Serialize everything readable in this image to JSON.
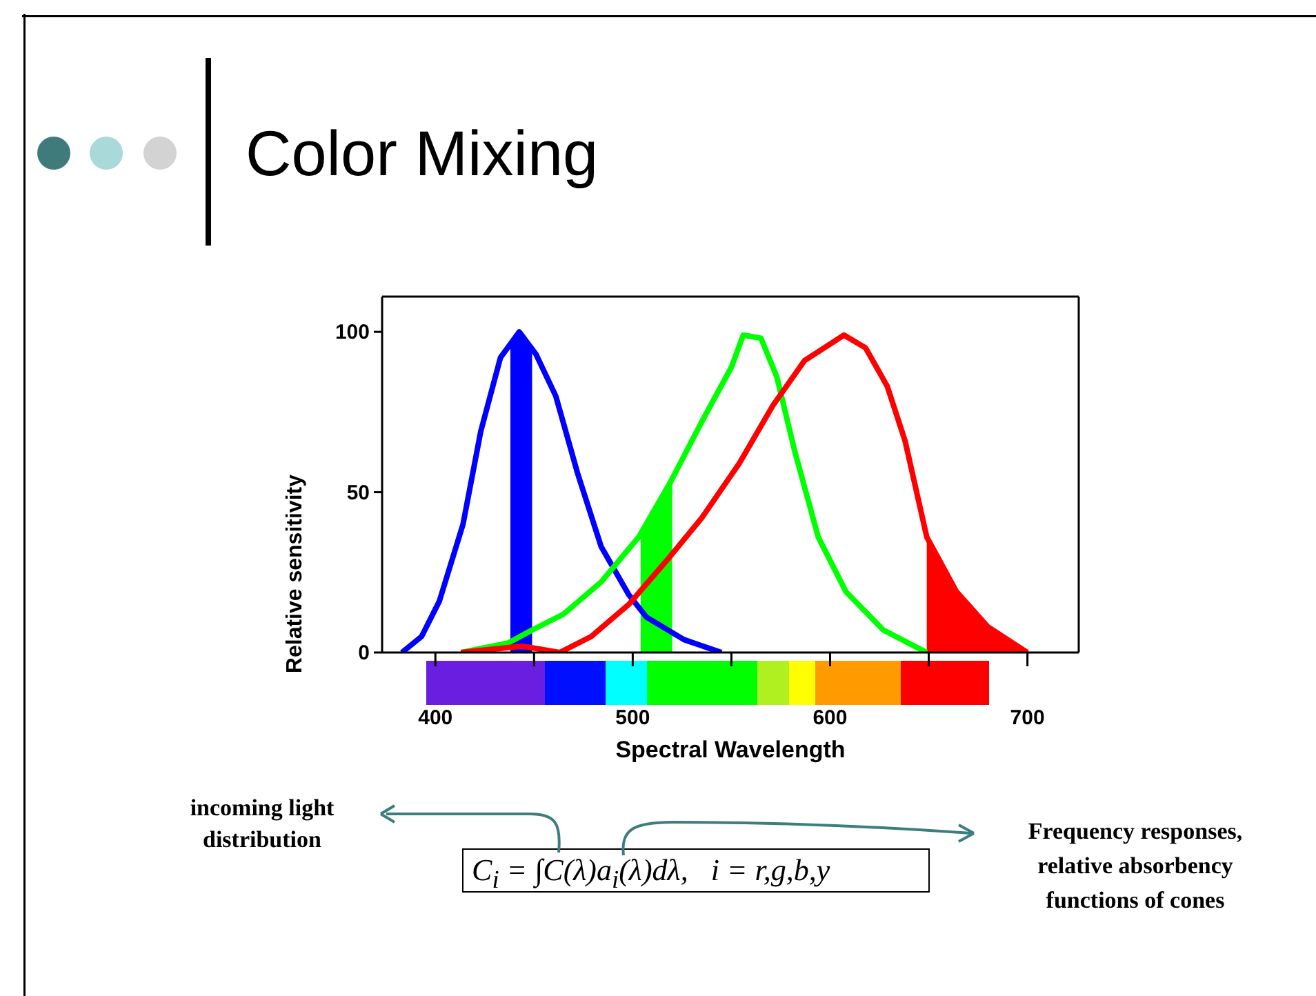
{
  "chart_data": {
    "type": "line",
    "title": "Color Mixing",
    "xlabel": "Spectral Wavelength",
    "ylabel": "Relative sensitivity",
    "xlim": [
      373,
      726
    ],
    "ylim": [
      0,
      111
    ],
    "xticks": [
      400,
      {
        "value": 450,
        "label": null
      },
      500,
      {
        "value": 550,
        "label": null
      },
      600,
      {
        "value": 650,
        "label": null
      },
      700
    ],
    "yticks": [
      0,
      50,
      100
    ],
    "marker": "none",
    "series": [
      {
        "type": "line",
        "color": "#0000ff",
        "x": [
          383,
          393,
          402,
          414,
          423,
          433,
          442.5,
          451,
          461,
          472,
          484,
          498,
          507,
          526,
          545
        ],
        "values": [
          0,
          5,
          16,
          40,
          69,
          92,
          100,
          93,
          80,
          56,
          33,
          18,
          11,
          4,
          0
        ]
      },
      {
        "type": "line",
        "color": "#00ff00",
        "x": [
          413,
          437,
          449,
          465,
          484,
          503,
          519,
          535,
          550,
          556,
          565,
          573,
          582,
          594,
          608,
          627,
          649
        ],
        "values": [
          0,
          3,
          7,
          12,
          22,
          36,
          53,
          72,
          89,
          99,
          98,
          86,
          63,
          36,
          19,
          7,
          0
        ]
      },
      {
        "type": "line",
        "color": "#ff0000",
        "x": [
          413,
          444,
          463,
          479,
          498,
          519,
          535,
          554,
          571,
          587,
          607,
          618,
          629,
          638,
          649,
          664,
          680,
          700
        ],
        "values": [
          0,
          2,
          0,
          5,
          15,
          30,
          42,
          59,
          77,
          91,
          99,
          95,
          83,
          66,
          36,
          19,
          8,
          0
        ]
      },
      {
        "type": "area",
        "color": "#0000ff",
        "x": [
          438,
          442.5,
          449
        ],
        "values": [
          97,
          100,
          95
        ]
      },
      {
        "type": "area",
        "color": "#00ff00",
        "x": [
          504,
          512,
          520
        ],
        "values": [
          38,
          46,
          55
        ]
      },
      {
        "type": "area",
        "color": "#ff0000",
        "x": [
          649,
          664,
          680,
          700
        ],
        "values": [
          36,
          19,
          8,
          0
        ]
      }
    ],
    "annotations": [
      "incoming light distribution",
      "C$_{i}$ = ∫C(λ)a$_{i}$(λ)dλ,   i = r,g,b,y",
      "Frequency responses, relative absorbency functions of cones"
    ]
  }
}
